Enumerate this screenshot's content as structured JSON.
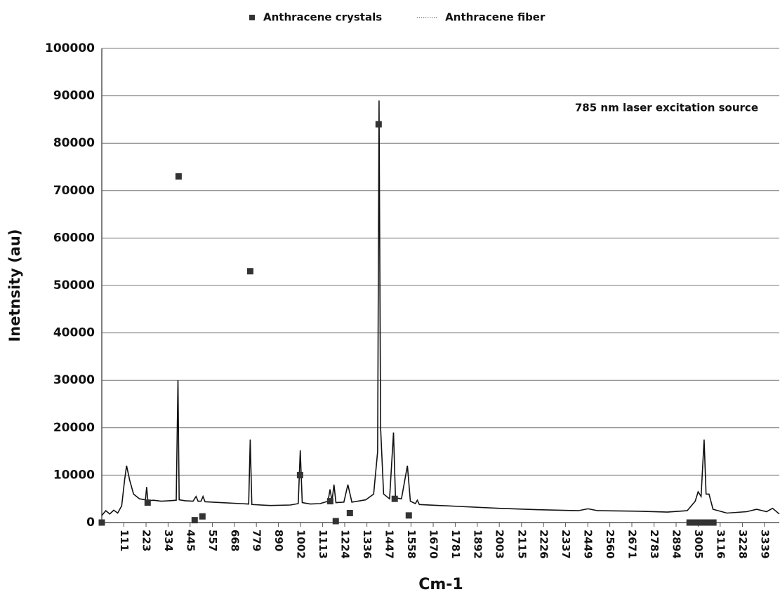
{
  "chart_data": {
    "type": "line+scatter",
    "ylabel": "Inetnsity (au)",
    "xlabel": "Cm-1",
    "annotation": "785 nm laser excitation source",
    "xlim": [
      0,
      3414
    ],
    "ylim": [
      0,
      100000
    ],
    "xticks": [
      111,
      223,
      334,
      445,
      557,
      668,
      779,
      890,
      1002,
      1113,
      1224,
      1336,
      1447,
      1558,
      1670,
      1781,
      1892,
      2003,
      2115,
      2226,
      2337,
      2449,
      2560,
      2671,
      2783,
      2894,
      3005,
      3116,
      3228,
      3339
    ],
    "yticks": [
      0,
      10000,
      20000,
      30000,
      40000,
      50000,
      60000,
      70000,
      80000,
      90000,
      100000
    ],
    "grid": true,
    "legend": "top",
    "series": [
      {
        "name": "Anthracene crystals",
        "kind": "scatter",
        "color": "#333333",
        "x": [
          0,
          231,
          387,
          468,
          507,
          748,
          999,
          1151,
          1179,
          1250,
          1395,
          1476,
          1547,
          2962,
          2975,
          2990,
          3005,
          3020,
          3035,
          3050,
          3065,
          3082
        ],
        "values": [
          0,
          4200,
          73000,
          500,
          1300,
          53000,
          10000,
          4500,
          300,
          2000,
          84000,
          5000,
          1500,
          0,
          0,
          0,
          0,
          0,
          0,
          0,
          0,
          0
        ]
      },
      {
        "name": "Anthracene fiber",
        "kind": "line",
        "color": "#111111",
        "x": [
          0,
          20,
          40,
          60,
          80,
          100,
          115,
          125,
          140,
          160,
          190,
          220,
          226,
          232,
          260,
          300,
          340,
          375,
          384,
          390,
          420,
          460,
          475,
          485,
          500,
          510,
          520,
          600,
          700,
          740,
          748,
          756,
          850,
          950,
          990,
          1000,
          1010,
          1050,
          1100,
          1140,
          1150,
          1160,
          1170,
          1180,
          1220,
          1240,
          1260,
          1330,
          1370,
          1390,
          1397,
          1405,
          1420,
          1450,
          1470,
          1480,
          1510,
          1540,
          1555,
          1580,
          1590,
          1600,
          1800,
          2000,
          2200,
          2400,
          2450,
          2500,
          2700,
          2850,
          2950,
          2990,
          3005,
          3020,
          3035,
          3045,
          3060,
          3080,
          3150,
          3250,
          3300,
          3350,
          3380,
          3414
        ],
        "values": [
          1500,
          2500,
          1800,
          2600,
          2000,
          3500,
          9000,
          12000,
          9000,
          6000,
          5000,
          4800,
          7500,
          4600,
          4700,
          4500,
          4600,
          4700,
          30000,
          4800,
          4600,
          4500,
          5500,
          4500,
          4500,
          5500,
          4400,
          4200,
          4000,
          3900,
          17500,
          3800,
          3600,
          3700,
          4000,
          15200,
          4200,
          3900,
          4000,
          4500,
          7000,
          4500,
          8000,
          4200,
          4300,
          8000,
          4300,
          4800,
          6000,
          15000,
          89000,
          20000,
          6000,
          5000,
          19000,
          5200,
          5000,
          12000,
          4500,
          4000,
          4700,
          3800,
          3400,
          3000,
          2700,
          2500,
          2900,
          2500,
          2400,
          2200,
          2500,
          4500,
          6500,
          5500,
          17500,
          6000,
          6000,
          2800,
          2000,
          2300,
          2800,
          2300,
          3000,
          1800
        ]
      }
    ]
  }
}
